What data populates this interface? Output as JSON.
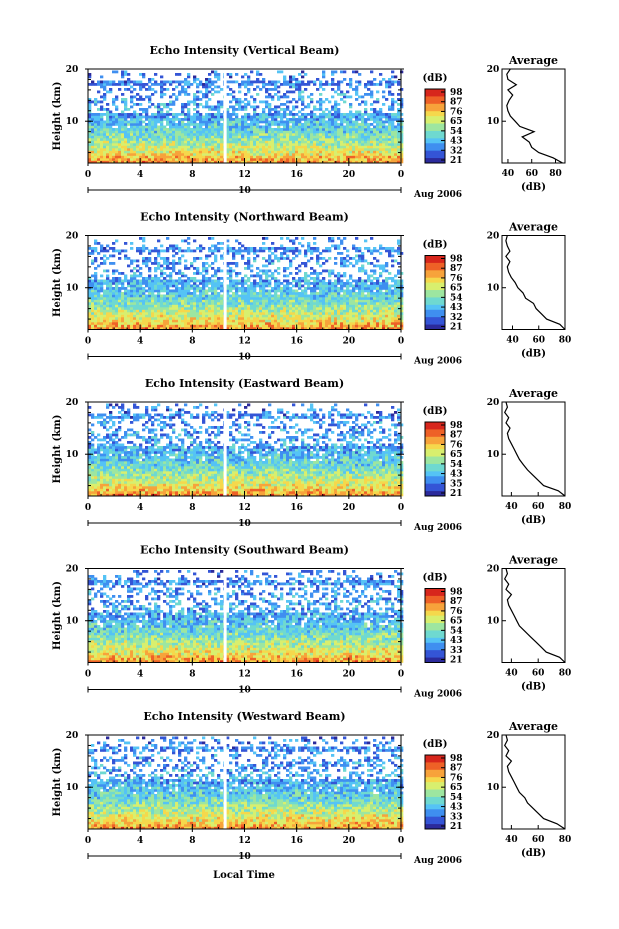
{
  "chart_data": [
    {
      "type": "heatmap",
      "title": "Echo Intensity (Vertical Beam)",
      "ylabel": "Height (km)",
      "x_ticks": [
        "0",
        "4",
        "8",
        "12",
        "16",
        "20",
        "0"
      ],
      "xlim": [
        0,
        24
      ],
      "ylim": [
        2,
        20
      ],
      "y_ticks": [
        "20",
        "10"
      ],
      "date_day": "10",
      "date_label": "Aug 2006",
      "colorbar": {
        "label": "(dB)",
        "ticks": [
          "98",
          "87",
          "76",
          "65",
          "54",
          "43",
          "32",
          "21"
        ],
        "range": [
          21,
          98
        ]
      },
      "average": {
        "title": "Average",
        "xlabel": "(dB)",
        "x_ticks": [
          "40",
          "60",
          "80"
        ],
        "xlim": [
          35,
          88
        ],
        "y_ticks": [
          "20",
          "10"
        ],
        "profile": {
          "height_km": [
            2,
            3,
            4,
            5,
            6,
            7,
            8,
            9,
            10,
            11,
            12,
            13,
            14,
            15,
            16,
            17,
            18,
            19,
            20
          ],
          "db": [
            86,
            78,
            66,
            60,
            58,
            52,
            62,
            50,
            46,
            42,
            40,
            39,
            41,
            44,
            40,
            47,
            40,
            39,
            42
          ]
        }
      }
    },
    {
      "type": "heatmap",
      "title": "Echo Intensity (Northward Beam)",
      "ylabel": "Height (km)",
      "x_ticks": [
        "0",
        "4",
        "8",
        "12",
        "16",
        "20",
        "0"
      ],
      "xlim": [
        0,
        24
      ],
      "ylim": [
        2,
        20
      ],
      "y_ticks": [
        "20",
        "10"
      ],
      "date_day": "10",
      "date_label": "Aug 2006",
      "colorbar": {
        "label": "(dB)",
        "ticks": [
          "98",
          "87",
          "76",
          "65",
          "54",
          "43",
          "32",
          "21"
        ],
        "range": [
          21,
          98
        ]
      },
      "average": {
        "title": "Average",
        "xlabel": "(dB)",
        "x_ticks": [
          "40",
          "60",
          "80"
        ],
        "xlim": [
          32,
          80
        ],
        "y_ticks": [
          "20",
          "10"
        ],
        "profile": {
          "height_km": [
            2,
            3,
            4,
            5,
            6,
            7,
            8,
            9,
            10,
            11,
            12,
            13,
            14,
            15,
            16,
            17,
            18,
            19,
            20
          ],
          "db": [
            80,
            76,
            66,
            62,
            58,
            56,
            50,
            48,
            44,
            42,
            39,
            37,
            36,
            38,
            35,
            38,
            36,
            35,
            36
          ]
        }
      }
    },
    {
      "type": "heatmap",
      "title": "Echo Intensity (Eastward Beam)",
      "ylabel": "Height (km)",
      "x_ticks": [
        "0",
        "4",
        "8",
        "12",
        "16",
        "20",
        "0"
      ],
      "xlim": [
        0,
        24
      ],
      "ylim": [
        2,
        20
      ],
      "y_ticks": [
        "20",
        "10"
      ],
      "date_day": "10",
      "date_label": "Aug 2006",
      "colorbar": {
        "label": "(dB)",
        "ticks": [
          "98",
          "87",
          "76",
          "65",
          "54",
          "43",
          "35",
          "21"
        ],
        "range": [
          21,
          98
        ]
      },
      "average": {
        "title": "Average",
        "xlabel": "(dB)",
        "x_ticks": [
          "40",
          "60",
          "80"
        ],
        "xlim": [
          33,
          80
        ],
        "y_ticks": [
          "20",
          "10"
        ],
        "profile": {
          "height_km": [
            2,
            3,
            4,
            5,
            6,
            7,
            8,
            9,
            10,
            11,
            12,
            13,
            14,
            15,
            16,
            17,
            18,
            19,
            20
          ],
          "db": [
            80,
            75,
            64,
            60,
            56,
            52,
            49,
            46,
            44,
            42,
            40,
            38,
            37,
            39,
            36,
            38,
            35,
            37,
            36
          ]
        }
      }
    },
    {
      "type": "heatmap",
      "title": "Echo Intensity (Southward Beam)",
      "ylabel": "Height (km)",
      "x_ticks": [
        "0",
        "4",
        "8",
        "12",
        "16",
        "20",
        "0"
      ],
      "xlim": [
        0,
        24
      ],
      "ylim": [
        2,
        20
      ],
      "y_ticks": [
        "20",
        "10"
      ],
      "date_day": "10",
      "date_label": "Aug 2006",
      "colorbar": {
        "label": "(dB)",
        "ticks": [
          "98",
          "87",
          "76",
          "65",
          "54",
          "43",
          "33",
          "21"
        ],
        "range": [
          21,
          98
        ]
      },
      "average": {
        "title": "Average",
        "xlabel": "(dB)",
        "x_ticks": [
          "40",
          "60",
          "80"
        ],
        "xlim": [
          33,
          80
        ],
        "y_ticks": [
          "20",
          "10"
        ],
        "profile": {
          "height_km": [
            2,
            3,
            4,
            5,
            6,
            7,
            8,
            9,
            10,
            11,
            12,
            13,
            14,
            15,
            16,
            17,
            18,
            19,
            20
          ],
          "db": [
            80,
            76,
            66,
            62,
            58,
            54,
            50,
            46,
            44,
            42,
            40,
            38,
            37,
            40,
            36,
            38,
            35,
            37,
            36
          ]
        }
      }
    },
    {
      "type": "heatmap",
      "title": "Echo Intensity (Westward Beam)",
      "ylabel": "Height (km)",
      "x_ticks": [
        "0",
        "4",
        "8",
        "12",
        "16",
        "20",
        "0"
      ],
      "xlim": [
        0,
        24
      ],
      "ylim": [
        2,
        20
      ],
      "y_ticks": [
        "20",
        "10"
      ],
      "date_day": "10",
      "date_label": "Aug 2006",
      "colorbar": {
        "label": "(dB)",
        "ticks": [
          "98",
          "87",
          "76",
          "65",
          "54",
          "43",
          "33",
          "21"
        ],
        "range": [
          21,
          98
        ]
      },
      "average": {
        "title": "Average",
        "xlabel": "(dB)",
        "x_ticks": [
          "40",
          "60",
          "80"
        ],
        "xlim": [
          33,
          80
        ],
        "y_ticks": [
          "20",
          "10"
        ],
        "profile": {
          "height_km": [
            2,
            3,
            4,
            5,
            6,
            7,
            8,
            9,
            10,
            11,
            12,
            13,
            14,
            15,
            16,
            17,
            18,
            19,
            20
          ],
          "db": [
            80,
            74,
            64,
            60,
            56,
            52,
            50,
            46,
            44,
            42,
            40,
            38,
            37,
            40,
            36,
            38,
            35,
            37,
            36
          ]
        }
      }
    }
  ],
  "xlabel": "Local Time",
  "colormap": [
    "#2b2a9b",
    "#3455d6",
    "#3f8ff0",
    "#55c3f5",
    "#6fd9d0",
    "#9de6a0",
    "#d8ef6e",
    "#f5d84c",
    "#f7a33b",
    "#ee6127",
    "#d7261c"
  ]
}
